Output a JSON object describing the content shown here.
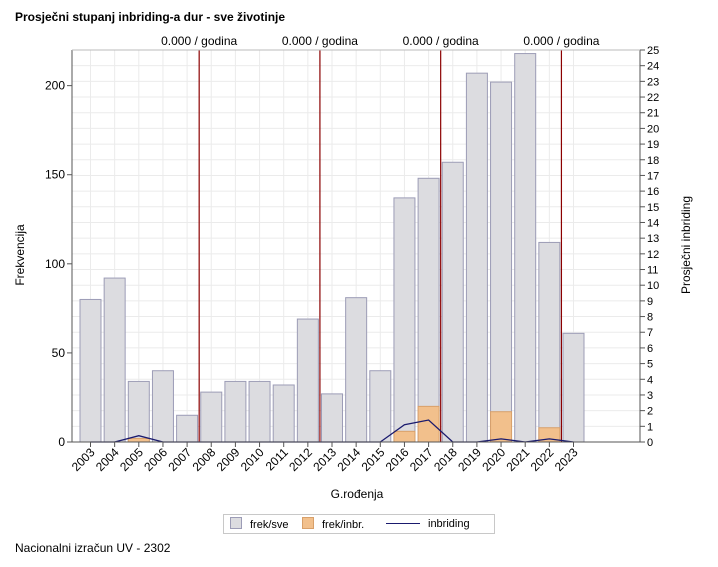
{
  "title": "Prosječni stupanj inbriding-a dur - sve životinje",
  "footer": "Nacionalni izračun UV - 2302",
  "legend": [
    {
      "key": "frek_sve",
      "label": "frek/sve"
    },
    {
      "key": "frek_inbr",
      "label": "frek/inbr."
    },
    {
      "key": "inbriding",
      "label": "inbriding"
    }
  ],
  "chart_data": {
    "type": "bar",
    "xlabel": "G.rođenja",
    "ylabel": "Frekvencija",
    "y2label": "Prosječni inbriding",
    "ylim": [
      0,
      220
    ],
    "y2lim": [
      0,
      25
    ],
    "yticks": [
      0,
      50,
      100,
      150,
      200
    ],
    "y2ticks": [
      0,
      1,
      2,
      3,
      4,
      5,
      6,
      7,
      8,
      9,
      10,
      11,
      12,
      13,
      14,
      15,
      16,
      17,
      18,
      19,
      20,
      21,
      22,
      23,
      24,
      25
    ],
    "grid": true,
    "legend_position": "bottom",
    "categories": [
      "2003",
      "2004",
      "2005",
      "2006",
      "2007",
      "2008",
      "2009",
      "2010",
      "2011",
      "2012",
      "2013",
      "2014",
      "2015",
      "2016",
      "2017",
      "2018",
      "2019",
      "2020",
      "2021",
      "2022",
      "2023"
    ],
    "series": [
      {
        "name": "frek/sve",
        "axis": "left",
        "kind": "bar",
        "values": [
          80,
          92,
          34,
          40,
          15,
          28,
          34,
          34,
          32,
          69,
          27,
          81,
          40,
          137,
          148,
          157,
          207,
          202,
          218,
          112,
          61
        ]
      },
      {
        "name": "frek/inbr.",
        "axis": "left",
        "kind": "bar",
        "values": [
          0,
          0,
          2,
          0,
          0,
          0,
          0,
          0,
          0,
          0,
          0,
          0,
          0,
          6,
          20,
          0,
          0,
          17,
          0,
          8,
          0
        ]
      },
      {
        "name": "inbriding",
        "axis": "right",
        "kind": "line",
        "values": [
          0,
          0,
          0.4,
          0,
          0,
          0,
          0,
          0,
          0,
          0,
          0,
          0,
          0,
          1.1,
          1.4,
          0,
          0,
          0.2,
          0,
          0.2,
          0
        ]
      }
    ],
    "reference_lines": [
      {
        "after_category": "2007",
        "label": "0.000 / godina"
      },
      {
        "after_category": "2012",
        "label": "0.000 / godina"
      },
      {
        "after_category": "2017",
        "label": "0.000 / godina"
      },
      {
        "after_category": "2022",
        "label": "0.000 / godina"
      }
    ],
    "colors": {
      "bar_all": "#dcdce0",
      "bar_all_edge": "#9c9cb6",
      "bar_inbr": "#f2c08c",
      "bar_inbr_edge": "#d8a06a",
      "line": "#1a1a6e",
      "ref_line": "#8b0000",
      "grid": "#ebebeb"
    }
  }
}
